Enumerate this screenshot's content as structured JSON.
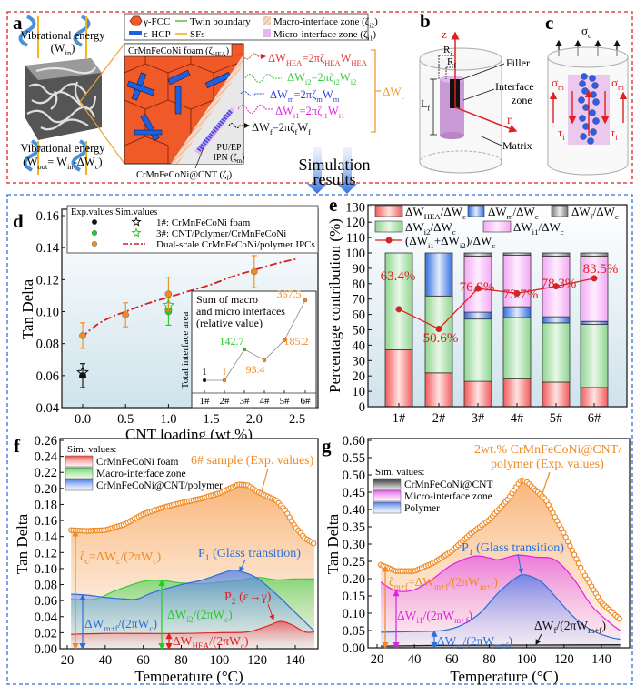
{
  "panel_labels": {
    "a": "a",
    "b": "b",
    "c": "c",
    "d": "d",
    "e": "e",
    "f": "f",
    "g": "g"
  },
  "panel_a": {
    "legend": {
      "fcc": "γ-FCC",
      "hcp": "ε-HCP",
      "twin": "Twin boundary",
      "sfs": "SFs",
      "macro": "Macro-interface zone (ζ_{i2})",
      "micro": "Micro-interface zone (ζ_{i1})"
    },
    "vib_in": [
      "Vibrational  energy",
      "(W_{in})"
    ],
    "vib_out": [
      "Vibrational  energy",
      "(W_{out}= W_{in}-ΔW_{c})"
    ],
    "foam_label": "CrMnFeCoNi foam (ζ_{HEA})",
    "ipn_label": [
      "PU/EP",
      "IPN (ζ_{m})"
    ],
    "cnt_label": "CrMnFeCoNi@CNT (ζ_{f})",
    "equations": {
      "hea": "ΔW_{HEA}=2πζ_{HEA}W_{HEA}",
      "i2": "ΔW_{i2}=2πζ_{i2}W_{i2}",
      "m": "ΔW_{m}=2πζ_{m}W_{m}",
      "i1": "ΔW_{i1}=2πζ_{i1}W_{i1}",
      "f": "ΔW_{f}=2πζ_{f}W_{f}"
    },
    "total": "ΔW_{c}",
    "colors": {
      "hea": "#e8332a",
      "i2": "#3fc53f",
      "m": "#2b3fd6",
      "i1": "#e028e0",
      "f": "#111111",
      "total": "#f39a2b"
    }
  },
  "panel_b": {
    "z": "z",
    "r": "r",
    "ri": "R_{i}",
    "rf": "R_{f}",
    "lf": "L_{f}",
    "filler": "Filler",
    "interface": [
      "Interface",
      "zone"
    ],
    "matrix": "Matrix"
  },
  "panel_c": {
    "sigma_c": "σ_{c}",
    "sigma_m": "σ_{m}",
    "tau_i": "τ_{i}"
  },
  "simulation_results": [
    "Simulation",
    "results"
  ],
  "chart_data": [
    {
      "id": "d",
      "type": "scatter",
      "xlabel": "CNT loading (wt.%)",
      "ylabel": "Tan Delta",
      "xlim": [
        -0.25,
        2.75
      ],
      "ylim": [
        0.04,
        0.165
      ],
      "xticks": [
        "0.0",
        "0.5",
        "1.0",
        "1.5",
        "2.0",
        "2.5"
      ],
      "yticks": [
        "0.04",
        "0.06",
        "0.08",
        "0.10",
        "0.12",
        "0.14",
        "0.16"
      ],
      "legend": {
        "header": "Exp.values Sim.values",
        "entries": [
          "1#: CrMnFeCoNi foam",
          "3#: CNT/Polymer/CrMnFeCoNi",
          "Dual-scale CrMnFeCoNi/polymer IPCs"
        ],
        "placement": "top"
      },
      "exp_series": [
        {
          "name": "1#: CrMnFeCoNi foam",
          "color": "#111111",
          "x": [
            0.0
          ],
          "y": [
            0.06
          ],
          "err": [
            0.0075
          ]
        },
        {
          "name": "3#: CNT/Polymer/CrMnFeCoNi",
          "color": "#22cc22",
          "x": [
            1.0
          ],
          "y": [
            0.1
          ],
          "err": [
            0.0085
          ]
        },
        {
          "name": "Dual-scale CrMnFeCoNi/polymer IPCs",
          "color": "#f08a24",
          "x": [
            0.0,
            0.5,
            1.0,
            2.0
          ],
          "y": [
            0.085,
            0.098,
            0.111,
            0.125
          ],
          "err": [
            0.008,
            0.0075,
            0.0105,
            0.01
          ]
        }
      ],
      "sim_series": [
        {
          "name": "1#: CrMnFeCoNi foam",
          "color": "#111111",
          "x": [
            0.0
          ],
          "y": [
            0.062
          ]
        },
        {
          "name": "3#: CNT/Polymer/CrMnFeCoNi",
          "color": "#22cc22",
          "x": [
            1.0
          ],
          "y": [
            0.104
          ]
        },
        {
          "name": "Dual-scale CrMnFeCoNi/polymer IPCs",
          "color": "#d42020",
          "x": [
            0,
            0.05,
            0.1,
            0.2,
            0.35,
            0.5,
            0.75,
            1.0,
            1.25,
            1.5,
            1.75,
            2.0,
            2.25,
            2.5
          ],
          "y": [
            0.083,
            0.087,
            0.089,
            0.093,
            0.097,
            0.1,
            0.105,
            0.109,
            0.113,
            0.117,
            0.122,
            0.126,
            0.13,
            0.133
          ]
        }
      ],
      "inset": {
        "type": "line",
        "title": [
          "Sum of macro",
          "and micro interfaces",
          "(relative value)"
        ],
        "ylabel": "Total interface area",
        "categories": [
          "1#",
          "2#",
          "3#",
          "4#",
          "5#",
          "6#"
        ],
        "values": [
          1,
          1,
          142.7,
          93.4,
          185.2,
          367.5
        ],
        "labels": [
          "1",
          "1",
          "142.7",
          "93.4",
          "185.2",
          "367.5"
        ],
        "colors": [
          "#111111",
          "#f08a24",
          "#22cc22",
          "#f08a24",
          "#f08a24",
          "#f08a24"
        ]
      }
    },
    {
      "id": "e",
      "type": "bar",
      "stacked": true,
      "ylabel": "Percentage contribution (%)",
      "ylim": [
        0,
        130
      ],
      "yticks": [
        "0",
        "10",
        "20",
        "30",
        "40",
        "50",
        "60",
        "70",
        "80",
        "90",
        "100",
        "110",
        "120",
        "130"
      ],
      "categories": [
        "1#",
        "2#",
        "3#",
        "4#",
        "5#",
        "6#"
      ],
      "series": [
        {
          "name": "ΔW_{HEA}/ΔW_{c}",
          "color": "#f25a5a",
          "values": [
            37,
            22,
            16.5,
            18,
            16,
            12.5
          ]
        },
        {
          "name": "ΔW_{i2}/ΔW_{c}",
          "color": "#7fcf7f",
          "values": [
            63,
            50,
            40.5,
            40,
            38.5,
            41
          ]
        },
        {
          "name": "ΔW_{m}/ΔW_{c}",
          "color": "#3a78e0",
          "values": [
            0,
            28,
            4.5,
            7,
            4,
            2
          ]
        },
        {
          "name": "ΔW_{i1}/ΔW_{c}",
          "color": "#f3a0f3",
          "values": [
            0,
            0,
            36.5,
            33.5,
            39.5,
            42.5
          ]
        },
        {
          "name": "ΔW_{f}/ΔW_{c}",
          "color": "#9a9a9a",
          "values": [
            0,
            0,
            2,
            1.5,
            2,
            2
          ]
        }
      ],
      "line": {
        "name": "(ΔW_{i1}+ΔW_{i2})/ΔW_{c}",
        "color": "#e02020",
        "values": [
          63.4,
          50.6,
          76.9,
          73.7,
          78.3,
          83.5
        ],
        "labels": [
          "63.4%",
          "50.6%",
          "76.9%",
          "73.7%",
          "78.3%",
          "83.5%"
        ]
      },
      "legend_placement": "top"
    },
    {
      "id": "f",
      "type": "area",
      "xlabel": "Temperature (°C)",
      "ylabel": "Tan Delta",
      "xlim": [
        15,
        155
      ],
      "ylim": [
        0,
        0.26
      ],
      "xticks": [
        "20",
        "40",
        "60",
        "80",
        "100",
        "120",
        "140"
      ],
      "yticks": [
        "0.00",
        "0.02",
        "0.04",
        "0.06",
        "0.08",
        "0.10",
        "0.12",
        "0.14",
        "0.16",
        "0.18",
        "0.20",
        "0.22",
        "0.24",
        "0.26"
      ],
      "legend": {
        "title": "Sim. values:",
        "entries": [
          "CrMnFeCoNi foam",
          "Macro-interface zone",
          "CrMnFeCoNi@CNT/polymer"
        ],
        "placement": "top-left"
      },
      "exp": {
        "name": "6# sample (Exp. values)",
        "color": "#f08a24",
        "x": [
          22,
          30,
          40,
          50,
          60,
          70,
          80,
          90,
          100,
          110,
          115,
          120,
          130,
          135,
          140,
          145,
          150
        ],
        "y": [
          0.148,
          0.147,
          0.148,
          0.155,
          0.168,
          0.176,
          0.182,
          0.187,
          0.194,
          0.205,
          0.204,
          0.196,
          0.185,
          0.172,
          0.152,
          0.138,
          0.131
        ]
      },
      "series": [
        {
          "name": "Macro-interface zone",
          "color": "#3cc83c",
          "x": [
            22,
            35,
            45,
            60,
            70,
            80,
            90,
            100,
            110,
            120,
            130,
            140,
            150
          ],
          "y": [
            0.062,
            0.062,
            0.072,
            0.084,
            0.085,
            0.082,
            0.081,
            0.083,
            0.085,
            0.089,
            0.086,
            0.087,
            0.087
          ]
        },
        {
          "name": "CrMnFeCoNi@CNT/polymer",
          "color": "#2a6fd8",
          "x": [
            22,
            30,
            40,
            50,
            57,
            65,
            80,
            90,
            100,
            107,
            112,
            120,
            130,
            140,
            150
          ],
          "y": [
            0.068,
            0.067,
            0.064,
            0.062,
            0.062,
            0.07,
            0.08,
            0.085,
            0.093,
            0.098,
            0.096,
            0.088,
            0.068,
            0.045,
            0.022
          ]
        },
        {
          "name": "CrMnFeCoNi foam",
          "color": "#e02424",
          "x": [
            22,
            40,
            60,
            80,
            100,
            115,
            125,
            132,
            138,
            145,
            150
          ],
          "y": [
            0.018,
            0.019,
            0.019,
            0.019,
            0.02,
            0.021,
            0.028,
            0.034,
            0.03,
            0.021,
            0.021
          ]
        }
      ],
      "annotations": {
        "p1": "P_{1} (Glass transition)",
        "p2": "P_{2} (ε→γ)",
        "zeta": "ζ_{c}=ΔW_{c}/(2πW_{c})",
        "mf": "ΔW_{m+f}/(2πW_{c})",
        "i2": "ΔW_{i2}/(2πW_{c})",
        "hea": "ΔW_{HEA}/(2πW_{c})"
      }
    },
    {
      "id": "g",
      "type": "area",
      "xlabel": "Temperature (°C)",
      "ylabel": "Tan Delta",
      "xlim": [
        12,
        153
      ],
      "ylim": [
        0,
        0.6
      ],
      "xticks": [
        "20",
        "40",
        "60",
        "80",
        "100",
        "120",
        "140"
      ],
      "yticks": [
        "0.00",
        "0.05",
        "0.10",
        "0.15",
        "0.20",
        "0.25",
        "0.30",
        "0.35",
        "0.40",
        "0.45",
        "0.50",
        "0.55",
        "0.60"
      ],
      "legend": {
        "title": "Sim. values:",
        "entries": [
          "CrMnFeCoNi@CNT",
          "Micro-interface zone",
          "Polymer"
        ],
        "placement": "top-left"
      },
      "exp": {
        "name": [
          "2wt.% CrMnFeCoNi@CNT/",
          "polymer (Exp. values)"
        ],
        "color": "#f08a24",
        "x": [
          22,
          30,
          40,
          50,
          60,
          70,
          80,
          90,
          97,
          100,
          110,
          120,
          130,
          140,
          150
        ],
        "y": [
          0.24,
          0.222,
          0.222,
          0.245,
          0.28,
          0.33,
          0.37,
          0.43,
          0.485,
          0.48,
          0.43,
          0.33,
          0.22,
          0.13,
          0.082
        ]
      },
      "series": [
        {
          "name": "Micro-interface zone",
          "color": "#e020e0",
          "x": [
            22,
            30,
            40,
            50,
            60,
            72,
            80,
            85,
            95,
            105,
            115,
            125,
            135,
            145,
            150
          ],
          "y": [
            0.19,
            0.165,
            0.168,
            0.2,
            0.24,
            0.265,
            0.26,
            0.255,
            0.268,
            0.262,
            0.255,
            0.2,
            0.12,
            0.07,
            0.05
          ]
        },
        {
          "name": "Polymer",
          "color": "#2a6fd8",
          "x": [
            22,
            40,
            55,
            65,
            75,
            85,
            95,
            100,
            108,
            115,
            125,
            135,
            145,
            150
          ],
          "y": [
            0.045,
            0.047,
            0.05,
            0.065,
            0.1,
            0.16,
            0.205,
            0.21,
            0.19,
            0.15,
            0.09,
            0.05,
            0.03,
            0.025
          ]
        },
        {
          "name": "CrMnFeCoNi@CNT",
          "color": "#222222",
          "x": [
            22,
            50,
            100,
            150
          ],
          "y": [
            0.005,
            0.007,
            0.008,
            0.009
          ]
        }
      ],
      "annotations": {
        "p1": "P_{1} (Glass transition)",
        "zeta": "ζ_{m+f}=ΔW_{m+f}/(2πW_{m+f})",
        "i1": "ΔW_{i1}/(2πW_{m+f})",
        "m": "ΔW_{m}/(2πW_{m+f})",
        "f": "ΔW_{f}/(2πW_{m+f})"
      }
    }
  ]
}
